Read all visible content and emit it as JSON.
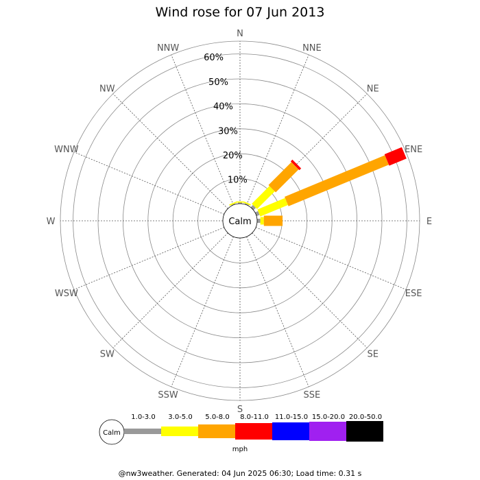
{
  "title": "Wind rose for 07 Jun 2013",
  "footer": "@nw3weather. Generated: 04 Jun 2025 06:30; Load time: 0.31 s",
  "calm_label": "Calm",
  "legend": {
    "calm_label": "Calm",
    "unit": "mph",
    "bins": [
      {
        "label": "1.0-3.0",
        "color": "#999999"
      },
      {
        "label": "3.0-5.0",
        "color": "#ffff00"
      },
      {
        "label": "5.0-8.0",
        "color": "#ffa500"
      },
      {
        "label": "8.0-11.0",
        "color": "#ff0000"
      },
      {
        "label": "11.0-15.0",
        "color": "#0000ff"
      },
      {
        "label": "15.0-20.0",
        "color": "#a020f0"
      },
      {
        "label": "20.0-50.0",
        "color": "#000000"
      }
    ]
  },
  "chart_data": {
    "type": "wind-rose",
    "title": "Wind rose for 07 Jun 2013",
    "directions": [
      "N",
      "NNE",
      "NE",
      "ENE",
      "E",
      "ESE",
      "SE",
      "SSE",
      "S",
      "SSW",
      "SW",
      "WSW",
      "W",
      "WNW",
      "NW",
      "NNW"
    ],
    "radial_ticks": [
      "10%",
      "20%",
      "30%",
      "40%",
      "50%",
      "60%"
    ],
    "radial_max_percent": 67,
    "unit": "mph",
    "series": [
      {
        "name": "1.0-3.0",
        "color": "#999999",
        "values": [
          0.4,
          0.4,
          1.3,
          1.3,
          1.3,
          0,
          0,
          0,
          0,
          0,
          0,
          0,
          0,
          0,
          0,
          0.3
        ]
      },
      {
        "name": "3.0-5.0",
        "color": "#ffff00",
        "values": [
          0.5,
          0.5,
          10,
          12,
          1.4,
          0,
          0,
          0,
          0,
          0,
          0,
          0,
          0,
          0,
          0,
          0.5
        ]
      },
      {
        "name": "5.0-8.0",
        "color": "#ffa500",
        "values": [
          0,
          0,
          13,
          43.5,
          7.5,
          0,
          0,
          0,
          0,
          0,
          0,
          0,
          0,
          0,
          0,
          0
        ]
      },
      {
        "name": "8.0-11.0",
        "color": "#ff0000",
        "values": [
          0,
          0,
          1,
          7.5,
          0,
          0,
          0,
          0,
          0,
          0,
          0,
          0,
          0,
          0,
          0,
          0
        ]
      },
      {
        "name": "11.0-15.0",
        "color": "#0000ff",
        "values": [
          0,
          0,
          0,
          0,
          0,
          0,
          0,
          0,
          0,
          0,
          0,
          0,
          0,
          0,
          0,
          0
        ]
      },
      {
        "name": "15.0-20.0",
        "color": "#a020f0",
        "values": [
          0,
          0,
          0,
          0,
          0,
          0,
          0,
          0,
          0,
          0,
          0,
          0,
          0,
          0,
          0,
          0
        ]
      },
      {
        "name": "20.0-50.0",
        "color": "#000000",
        "values": [
          0,
          0,
          0,
          0,
          0,
          0,
          0,
          0,
          0,
          0,
          0,
          0,
          0,
          0,
          0,
          0
        ]
      }
    ]
  }
}
